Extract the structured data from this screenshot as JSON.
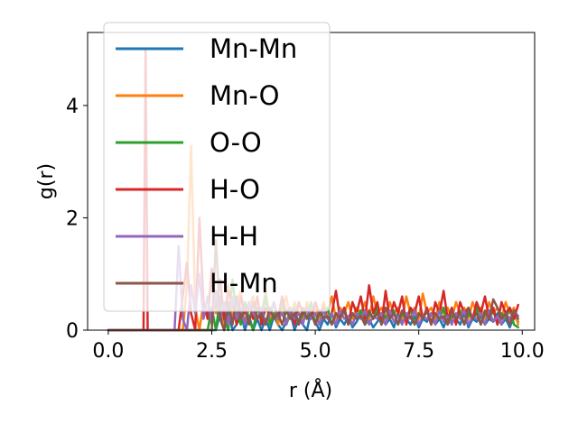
{
  "chart_data": {
    "type": "line",
    "title": "",
    "xlabel": "r (Å)",
    "ylabel": "g(r)",
    "xlim": [
      -0.5,
      10.3
    ],
    "ylim": [
      0,
      5.3
    ],
    "xticks": [
      0.0,
      2.5,
      5.0,
      7.5,
      10.0
    ],
    "xtick_labels": [
      "0.0",
      "2.5",
      "5.0",
      "7.5",
      "10.0"
    ],
    "yticks": [
      0,
      2,
      4
    ],
    "ytick_labels": [
      "0",
      "2",
      "4"
    ],
    "grid": false,
    "legend": "top-left",
    "series": [
      {
        "name": "Mn-Mn",
        "color": "#1f77b4",
        "x": [
          0.0,
          2.6,
          2.7,
          2.8,
          2.9,
          3.0,
          3.1,
          3.2,
          3.3,
          3.4,
          3.5,
          3.6,
          3.7,
          3.8,
          3.9,
          4.0,
          4.1,
          4.2,
          4.3,
          4.4,
          4.5,
          4.6,
          4.7,
          4.8,
          4.9,
          5.0,
          5.1,
          5.2,
          5.3,
          5.4,
          5.5,
          5.6,
          5.7,
          5.8,
          5.9,
          6.0,
          6.1,
          6.2,
          6.3,
          6.4,
          6.5,
          6.6,
          6.7,
          6.8,
          6.9,
          7.0,
          7.1,
          7.2,
          7.3,
          7.4,
          7.5,
          7.6,
          7.7,
          7.8,
          7.9,
          8.0,
          8.1,
          8.2,
          8.3,
          8.4,
          8.5,
          8.6,
          8.7,
          8.8,
          8.9,
          9.0,
          9.1,
          9.2,
          9.3,
          9.4,
          9.5,
          9.6,
          9.7,
          9.8,
          9.9
        ],
        "y": [
          0.0,
          0.0,
          0.3,
          0.0,
          0.35,
          0.0,
          0.1,
          0.3,
          0.0,
          0.25,
          0.0,
          0.2,
          0.0,
          0.2,
          0.0,
          0.25,
          0.1,
          0.0,
          0.15,
          0.3,
          0.0,
          0.2,
          0.1,
          0.0,
          0.35,
          0.15,
          0.0,
          0.2,
          0.1,
          0.3,
          0.05,
          0.2,
          0.1,
          0.25,
          0.05,
          0.15,
          0.3,
          0.1,
          0.2,
          0.05,
          0.15,
          0.25,
          0.1,
          0.2,
          0.05,
          0.3,
          0.15,
          0.2,
          0.1,
          0.25,
          0.05,
          0.2,
          0.15,
          0.3,
          0.1,
          0.2,
          0.05,
          0.25,
          0.15,
          0.2,
          0.1,
          0.3,
          0.05,
          0.2,
          0.15,
          0.25,
          0.1,
          0.2,
          0.15,
          0.3,
          0.1,
          0.2,
          0.05,
          0.25,
          0.15
        ]
      },
      {
        "name": "Mn-O",
        "color": "#ff7f0e",
        "x": [
          0.0,
          1.8,
          1.9,
          2.0,
          2.1,
          2.2,
          2.3,
          2.4,
          2.5,
          2.6,
          2.7,
          2.8,
          2.9,
          3.0,
          3.1,
          3.2,
          3.3,
          3.4,
          3.5,
          3.6,
          3.7,
          3.8,
          3.9,
          4.0,
          4.1,
          4.2,
          4.3,
          4.4,
          4.5,
          4.6,
          4.7,
          4.8,
          4.9,
          5.0,
          5.1,
          5.2,
          5.3,
          5.4,
          5.5,
          5.6,
          5.7,
          5.8,
          5.9,
          6.0,
          6.1,
          6.2,
          6.3,
          6.4,
          6.5,
          6.6,
          6.7,
          6.8,
          6.9,
          7.0,
          7.1,
          7.2,
          7.3,
          7.4,
          7.5,
          7.6,
          7.7,
          7.8,
          7.9,
          8.0,
          8.1,
          8.2,
          8.3,
          8.4,
          8.5,
          8.6,
          8.7,
          8.8,
          8.9,
          9.0,
          9.1,
          9.2,
          9.3,
          9.4,
          9.5,
          9.6,
          9.7,
          9.8,
          9.9
        ],
        "y": [
          0.0,
          0.0,
          0.8,
          3.28,
          0.4,
          0.0,
          0.5,
          0.2,
          1.0,
          0.3,
          0.6,
          0.1,
          0.8,
          0.2,
          0.5,
          0.7,
          0.1,
          0.4,
          0.6,
          0.2,
          0.3,
          0.7,
          0.2,
          0.5,
          0.1,
          0.4,
          0.6,
          0.2,
          0.5,
          0.3,
          0.2,
          0.5,
          0.3,
          0.4,
          0.2,
          0.5,
          0.3,
          0.6,
          0.2,
          0.4,
          0.3,
          0.5,
          0.2,
          0.4,
          0.3,
          0.5,
          0.2,
          0.6,
          0.3,
          0.4,
          0.2,
          0.5,
          0.3,
          0.4,
          0.2,
          0.6,
          0.3,
          0.4,
          0.2,
          0.65,
          0.3,
          0.4,
          0.2,
          0.5,
          0.3,
          0.4,
          0.2,
          0.5,
          0.3,
          0.4,
          0.2,
          0.5,
          0.3,
          0.4,
          0.2,
          0.5,
          0.3,
          0.4,
          0.2,
          0.5,
          0.3,
          0.4,
          0.1
        ]
      },
      {
        "name": "O-O",
        "color": "#2ca02c",
        "x": [
          0.0,
          2.4,
          2.5,
          2.6,
          2.7,
          2.8,
          2.9,
          3.0,
          3.1,
          3.2,
          3.3,
          3.4,
          3.5,
          3.6,
          3.7,
          3.8,
          3.9,
          4.0,
          4.1,
          4.2,
          4.3,
          4.4,
          4.5,
          4.6,
          4.7,
          4.8,
          4.9,
          5.0,
          5.1,
          5.2,
          5.3,
          5.4,
          5.5,
          5.6,
          5.7,
          5.8,
          5.9,
          6.0,
          6.1,
          6.2,
          6.3,
          6.4,
          6.5,
          6.6,
          6.7,
          6.8,
          6.9,
          7.0,
          7.1,
          7.2,
          7.3,
          7.4,
          7.5,
          7.6,
          7.7,
          7.8,
          7.9,
          8.0,
          8.1,
          8.2,
          8.3,
          8.4,
          8.5,
          8.6,
          8.7,
          8.8,
          8.9,
          9.0,
          9.1,
          9.2,
          9.3,
          9.4,
          9.5,
          9.6,
          9.7,
          9.8,
          9.9
        ],
        "y": [
          0.0,
          0.0,
          0.4,
          0.0,
          0.6,
          0.2,
          0.0,
          0.9,
          0.3,
          0.1,
          0.5,
          0.2,
          0.0,
          0.4,
          0.2,
          0.6,
          0.1,
          0.3,
          0.2,
          0.5,
          0.1,
          0.3,
          0.4,
          0.1,
          0.3,
          0.2,
          0.5,
          0.1,
          0.3,
          0.2,
          0.4,
          0.1,
          0.3,
          0.2,
          0.4,
          0.1,
          0.3,
          0.2,
          0.35,
          0.1,
          0.3,
          0.2,
          0.4,
          0.1,
          0.25,
          0.2,
          0.35,
          0.1,
          0.3,
          0.2,
          0.4,
          0.1,
          0.3,
          0.2,
          0.35,
          0.1,
          0.3,
          0.2,
          0.4,
          0.1,
          0.25,
          0.2,
          0.35,
          0.1,
          0.3,
          0.2,
          0.4,
          0.1,
          0.3,
          0.2,
          0.35,
          0.1,
          0.3,
          0.2,
          0.4,
          0.1,
          0.05
        ]
      },
      {
        "name": "H-O",
        "color": "#d62728",
        "x": [
          0.0,
          0.8,
          0.85,
          0.9,
          0.95,
          1.0,
          1.05,
          1.7,
          1.8,
          1.9,
          2.0,
          2.1,
          2.2,
          2.3,
          2.4,
          2.5,
          2.6,
          2.7,
          2.8,
          2.9,
          3.0,
          3.1,
          3.2,
          3.3,
          3.4,
          3.5,
          3.6,
          3.7,
          3.8,
          3.9,
          4.0,
          4.1,
          4.2,
          4.3,
          4.4,
          4.5,
          4.6,
          4.7,
          4.8,
          4.9,
          5.0,
          5.1,
          5.2,
          5.3,
          5.4,
          5.5,
          5.6,
          5.7,
          5.8,
          5.9,
          6.0,
          6.1,
          6.2,
          6.3,
          6.4,
          6.5,
          6.6,
          6.7,
          6.8,
          6.9,
          7.0,
          7.1,
          7.2,
          7.3,
          7.4,
          7.5,
          7.6,
          7.7,
          7.8,
          7.9,
          8.0,
          8.1,
          8.2,
          8.3,
          8.4,
          8.5,
          8.6,
          8.7,
          8.8,
          8.9,
          9.0,
          9.1,
          9.2,
          9.3,
          9.4,
          9.5,
          9.6,
          9.7,
          9.8,
          9.9
        ],
        "y": [
          0.0,
          0.0,
          0.0,
          5.0,
          0.0,
          0.0,
          0.0,
          0.0,
          0.6,
          1.2,
          0.3,
          0.0,
          2.0,
          0.5,
          0.2,
          1.1,
          0.4,
          0.9,
          0.2,
          0.7,
          0.5,
          0.1,
          0.6,
          0.3,
          0.5,
          0.2,
          0.6,
          0.1,
          0.4,
          0.3,
          0.5,
          0.2,
          0.6,
          0.3,
          0.4,
          0.1,
          0.5,
          0.3,
          0.4,
          0.2,
          0.5,
          0.3,
          0.4,
          0.2,
          0.3,
          0.7,
          0.2,
          0.4,
          0.1,
          0.5,
          0.3,
          0.6,
          0.2,
          0.8,
          0.3,
          0.5,
          0.1,
          0.7,
          0.2,
          0.5,
          0.3,
          0.6,
          0.1,
          0.4,
          0.3,
          0.6,
          0.2,
          0.4,
          0.1,
          0.5,
          0.3,
          0.7,
          0.2,
          0.4,
          0.1,
          0.5,
          0.3,
          0.4,
          0.2,
          0.5,
          0.3,
          0.6,
          0.2,
          0.4,
          0.1,
          0.5,
          0.3,
          0.4,
          0.2,
          0.45
        ]
      },
      {
        "name": "H-H",
        "color": "#9467bd",
        "x": [
          0.0,
          1.5,
          1.6,
          1.7,
          1.8,
          1.9,
          2.0,
          2.1,
          2.2,
          2.3,
          2.4,
          2.5,
          2.6,
          2.7,
          2.8,
          2.9,
          3.0,
          3.1,
          3.2,
          3.3,
          3.4,
          3.5,
          3.6,
          3.7,
          3.8,
          3.9,
          4.0,
          4.1,
          4.2,
          4.3,
          4.4,
          4.5,
          4.6,
          4.7,
          4.8,
          4.9,
          5.0,
          5.1,
          5.2,
          5.3,
          5.4,
          5.5,
          5.6,
          5.7,
          5.8,
          5.9,
          6.0,
          6.1,
          6.2,
          6.3,
          6.4,
          6.5,
          6.6,
          6.7,
          6.8,
          6.9,
          7.0,
          7.1,
          7.2,
          7.3,
          7.4,
          7.5,
          7.6,
          7.7,
          7.8,
          7.9,
          8.0,
          8.1,
          8.2,
          8.3,
          8.4,
          8.5,
          8.6,
          8.7,
          8.8,
          8.9,
          9.0,
          9.1,
          9.2,
          9.3,
          9.4,
          9.5,
          9.6,
          9.7,
          9.8,
          9.9
        ],
        "y": [
          0.0,
          0.0,
          0.0,
          1.5,
          0.2,
          0.0,
          0.8,
          0.3,
          1.0,
          0.2,
          0.6,
          0.1,
          0.7,
          0.2,
          0.5,
          0.1,
          0.6,
          0.2,
          0.4,
          0.1,
          0.5,
          0.3,
          0.2,
          0.4,
          0.1,
          0.3,
          0.5,
          0.2,
          0.3,
          0.1,
          0.4,
          0.2,
          0.3,
          0.1,
          0.4,
          0.2,
          0.3,
          0.1,
          0.35,
          0.2,
          0.3,
          0.1,
          0.35,
          0.2,
          0.25,
          0.1,
          0.3,
          0.2,
          0.35,
          0.1,
          0.25,
          0.2,
          0.3,
          0.1,
          0.35,
          0.15,
          0.25,
          0.1,
          0.3,
          0.2,
          0.35,
          0.1,
          0.25,
          0.2,
          0.3,
          0.1,
          0.35,
          0.15,
          0.25,
          0.1,
          0.3,
          0.2,
          0.35,
          0.1,
          0.25,
          0.2,
          0.3,
          0.1,
          0.35,
          0.15,
          0.25,
          0.1,
          0.3,
          0.2,
          0.35,
          0.25
        ]
      },
      {
        "name": "H-Mn",
        "color": "#8c564b",
        "x": [
          0.0,
          2.5,
          2.6,
          2.7,
          2.8,
          2.9,
          3.0,
          3.1,
          3.2,
          3.3,
          3.4,
          3.5,
          3.6,
          3.7,
          3.8,
          3.9,
          4.0,
          4.1,
          4.2,
          4.3,
          4.4,
          4.5,
          4.6,
          4.7,
          4.8,
          4.9,
          5.0,
          5.1,
          5.2,
          5.3,
          5.4,
          5.5,
          5.6,
          5.7,
          5.8,
          5.9,
          6.0,
          6.1,
          6.2,
          6.3,
          6.4,
          6.5,
          6.6,
          6.7,
          6.8,
          6.9,
          7.0,
          7.1,
          7.2,
          7.3,
          7.4,
          7.5,
          7.6,
          7.7,
          7.8,
          7.9,
          8.0,
          8.1,
          8.2,
          8.3,
          8.4,
          8.5,
          8.6,
          8.7,
          8.8,
          8.9,
          9.0,
          9.1,
          9.2,
          9.3,
          9.4,
          9.5,
          9.6,
          9.7,
          9.8,
          9.9
        ],
        "y": [
          0.0,
          0.0,
          1.6,
          0.2,
          0.0,
          0.5,
          0.1,
          0.6,
          0.2,
          0.4,
          0.1,
          0.5,
          0.2,
          0.3,
          0.1,
          0.4,
          0.2,
          0.3,
          0.1,
          0.35,
          0.2,
          0.3,
          0.1,
          0.4,
          0.2,
          0.3,
          0.1,
          0.35,
          0.2,
          0.25,
          0.1,
          0.3,
          0.2,
          0.35,
          0.1,
          0.3,
          0.2,
          0.25,
          0.1,
          0.35,
          0.2,
          0.3,
          0.1,
          0.4,
          0.2,
          0.3,
          0.1,
          0.35,
          0.2,
          0.25,
          0.1,
          0.3,
          0.2,
          0.35,
          0.1,
          0.3,
          0.2,
          0.25,
          0.1,
          0.35,
          0.2,
          0.3,
          0.1,
          0.4,
          0.2,
          0.3,
          0.1,
          0.35,
          0.2,
          0.55,
          0.4,
          0.2,
          0.3,
          0.1,
          0.35,
          0.2
        ]
      }
    ]
  }
}
